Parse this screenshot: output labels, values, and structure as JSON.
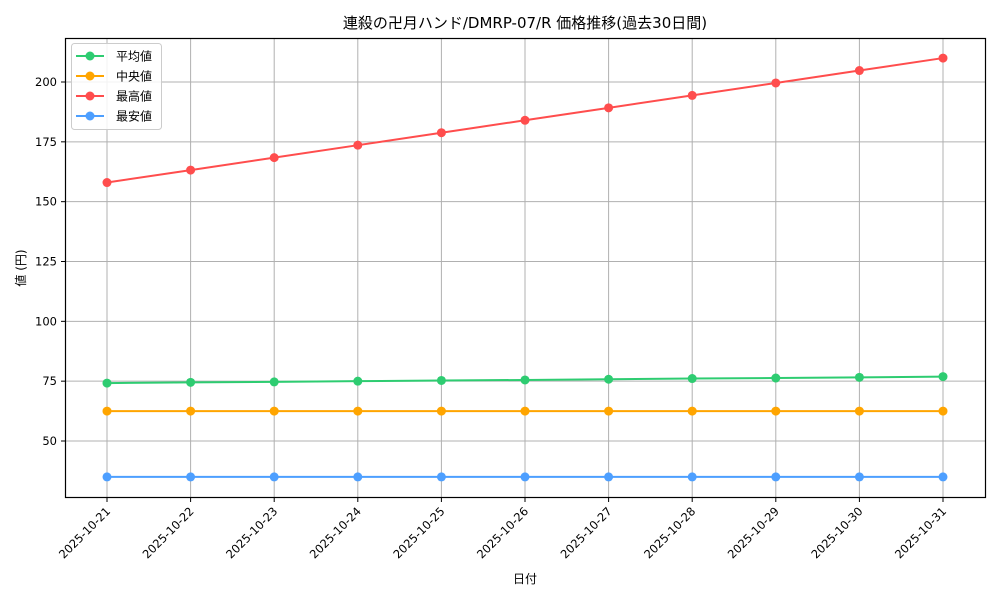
{
  "chart_data": {
    "type": "line",
    "title": "連殺の卍月ハンド/DMRP-07/R 価格推移(過去30日間)",
    "xlabel": "日付",
    "ylabel": "値 (円)",
    "categories": [
      "2025-10-21",
      "2025-10-22",
      "2025-10-23",
      "2025-10-24",
      "2025-10-25",
      "2025-10-26",
      "2025-10-27",
      "2025-10-28",
      "2025-10-29",
      "2025-10-30",
      "2025-10-31"
    ],
    "series": [
      {
        "name": "平均値",
        "color": "#2ecc71",
        "values": [
          74.2,
          74.5,
          74.7,
          75.0,
          75.3,
          75.5,
          75.8,
          76.1,
          76.3,
          76.6,
          76.9
        ]
      },
      {
        "name": "中央値",
        "color": "#ffa500",
        "values": [
          62.5,
          62.5,
          62.5,
          62.5,
          62.5,
          62.5,
          62.5,
          62.5,
          62.5,
          62.5,
          62.5
        ]
      },
      {
        "name": "最高値",
        "color": "#ff4d4d",
        "values": [
          158,
          163.2,
          168.4,
          173.6,
          178.8,
          184,
          189.2,
          194.4,
          199.6,
          204.8,
          210
        ]
      },
      {
        "name": "最安値",
        "color": "#4d9fff",
        "values": [
          35,
          35,
          35,
          35,
          35,
          35,
          35,
          35,
          35,
          35,
          35
        ]
      }
    ],
    "yticks": [
      50,
      75,
      100,
      125,
      150,
      175,
      200
    ],
    "ylim": [
      28.5,
      218
    ],
    "grid": true,
    "legend_position": "upper left"
  }
}
